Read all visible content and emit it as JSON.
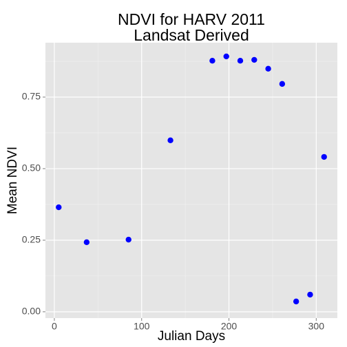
{
  "chart_data": {
    "type": "scatter",
    "title": [
      "NDVI for HARV 2011",
      "Landsat Derived"
    ],
    "x_label": "Julian Days",
    "y_label": "Mean NDVI",
    "x": [
      5,
      37,
      85,
      133,
      181,
      197,
      213,
      229,
      245,
      261,
      277,
      293,
      309
    ],
    "values": [
      0.365,
      0.243,
      0.252,
      0.599,
      0.877,
      0.892,
      0.877,
      0.88,
      0.849,
      0.796,
      0.036,
      0.06,
      0.541
    ],
    "color": "blue",
    "xlim": [
      -10.2,
      324.2
    ],
    "xticks": [
      0,
      100,
      200,
      300
    ],
    "xminor_ticks": [
      50,
      150,
      250
    ],
    "ylim": [
      -0.022,
      0.94
    ],
    "yticks": [
      {
        "value": 0,
        "label": "0.00"
      },
      {
        "value": 0.25,
        "label": "0.25"
      },
      {
        "value": 0.5,
        "label": "0.50"
      },
      {
        "value": 0.75,
        "label": "0.75"
      }
    ],
    "yminor_ticks": [
      0.125,
      0.375,
      0.625,
      0.875
    ],
    "grid": true
  }
}
